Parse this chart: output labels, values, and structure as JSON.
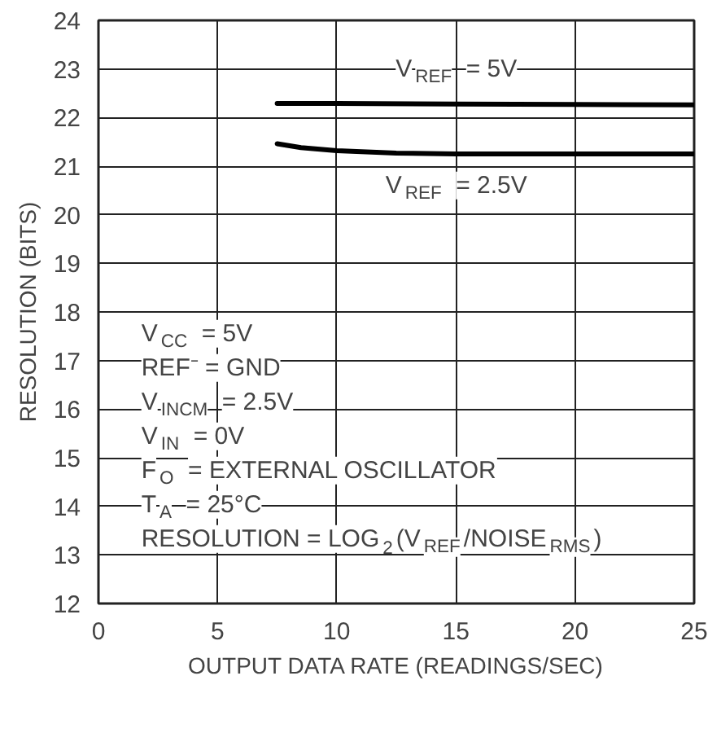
{
  "chart_data": {
    "type": "line",
    "xlabel": "OUTPUT DATA RATE (READINGS/SEC)",
    "ylabel": "RESOLUTION (BITS)",
    "series": [
      {
        "color": "#000000",
        "x": [
          7.5,
          10,
          15,
          20,
          25
        ],
        "values": [
          22.29,
          22.29,
          22.28,
          22.27,
          22.26
        ]
      },
      {
        "color": "#000000",
        "x": [
          7.5,
          8.5,
          10,
          12.5,
          15,
          20,
          25
        ],
        "values": [
          21.46,
          21.38,
          21.32,
          21.27,
          21.25,
          21.25,
          21.25
        ]
      }
    ],
    "xlim": [
      0,
      25
    ],
    "xticks": [
      0,
      5,
      10,
      15,
      20,
      25
    ],
    "ylim": [
      12,
      24
    ],
    "yticks": [
      12,
      13,
      14,
      15,
      16,
      17,
      18,
      19,
      20,
      21,
      22,
      23,
      24
    ],
    "grid": true,
    "line_style": "solid",
    "marker": "none",
    "annotations": [
      "V$_{REF}$ = 5V",
      "V$_{REF}$ = 2.5V",
      "V$_{CC}$ = 5V",
      "REF⁻ = GND",
      "V$_{INCM}$ = 2.5V",
      "V$_{IN}$ = 0V",
      "F$_{O}$ = EXTERNAL OSCILLATOR",
      "T$_{A}$ = 25°C",
      "RESOLUTION = LOG$_{2}$(V$_{REF}$/NOISE$_{RMS}$)"
    ]
  }
}
